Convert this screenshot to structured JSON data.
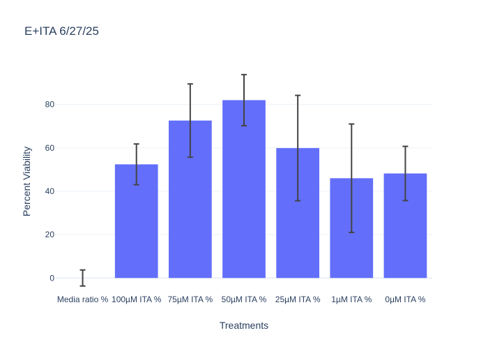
{
  "chart_data": {
    "type": "bar",
    "title": "E+ITA 6/27/25",
    "xlabel": "Treatments",
    "ylabel": "Percent Viability",
    "categories": [
      "Media ratio %",
      "100µM ITA %",
      "75µM ITA %",
      "50µM ITA %",
      "25µM ITA %",
      "1µM ITA %",
      "0µM ITA %"
    ],
    "values": [
      0,
      52.4,
      72.6,
      82.0,
      59.9,
      46.0,
      48.2
    ],
    "error_low": [
      3.7,
      9.4,
      16.9,
      11.8,
      24.3,
      25.0,
      12.5
    ],
    "error_high": [
      3.7,
      9.4,
      16.9,
      11.8,
      24.3,
      25.0,
      12.5
    ],
    "ylim": [
      -7,
      96
    ],
    "yticks": [
      0,
      20,
      40,
      60,
      80
    ],
    "grid": true,
    "bar_color": "#636efa",
    "error_color": "#444444"
  }
}
